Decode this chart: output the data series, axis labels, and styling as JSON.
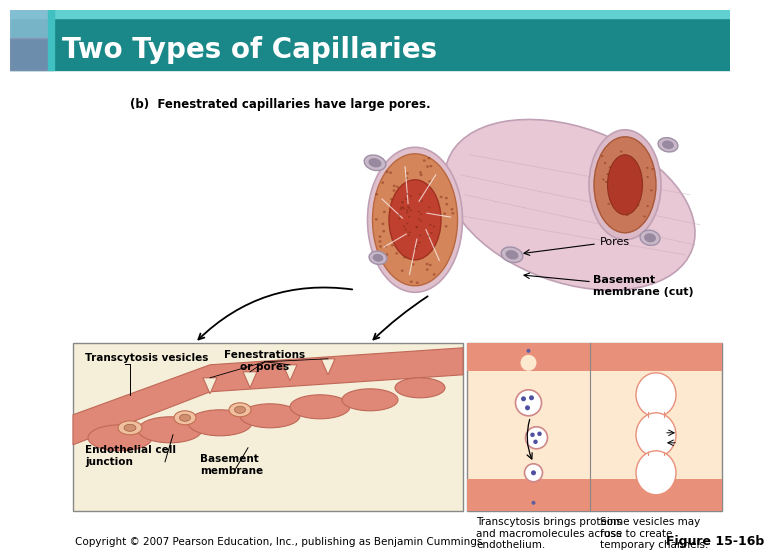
{
  "title": "Two Types of Capillaries",
  "title_color": "#ffffff",
  "header_bg_color": "#1a8888",
  "header_accent_teal": "#40c0c0",
  "header_accent_blue": "#8abcd4",
  "header_accent_purple": "#8890b8",
  "figure_label": "Figure 15-16b",
  "copyright_text": "Copyright © 2007 Pearson Education, Inc., publishing as Benjamin Cummings",
  "subtitle": "(b)  Fenestrated capillaries have large pores.",
  "label_pores": "Pores",
  "label_basement": "Basement\nmembrane (cut)",
  "label_transcytosis": "Transcytosis vesicles",
  "label_fenestrations": "Fenestrations\nor pores",
  "label_endothelial": "Endothelial cell\njunction",
  "label_basement2": "Basement\nmembrane",
  "caption1": "Transcytosis brings proteins\nand macromolecules across\nendothelium.",
  "caption2": "Some vesicles may\nfuse to create\ntemporary channels.",
  "bg_color": "#ffffff"
}
